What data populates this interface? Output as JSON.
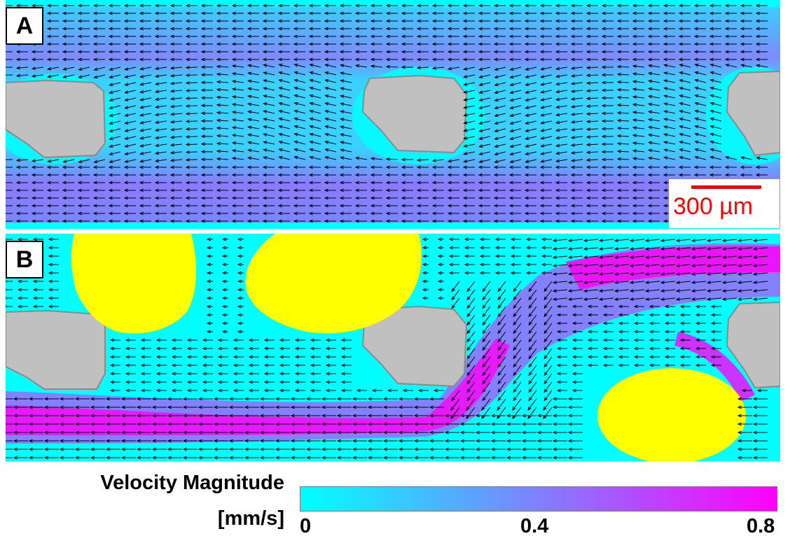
{
  "panels": [
    {
      "label": "A"
    },
    {
      "label": "B"
    }
  ],
  "scale_bar": {
    "text": "300 µm",
    "color": "#ff0000"
  },
  "colorbar": {
    "title_line1": "Velocity Magnitude",
    "title_line2": "[mm/s]",
    "ticks": [
      "0",
      "0.4",
      "0.8"
    ],
    "colors": [
      "#00ffff",
      "#8080ff",
      "#ff00ff"
    ]
  },
  "colors": {
    "solid_grain": "#c0c0c0",
    "droplet": "#ffff00",
    "low_velocity": "#00ffff",
    "high_velocity": "#ff00ff"
  }
}
